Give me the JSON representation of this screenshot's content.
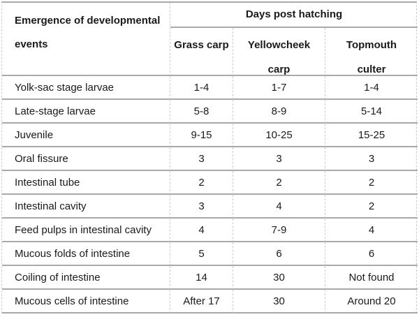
{
  "table": {
    "corner_header": {
      "line1": "Emergence of developmental",
      "line2": "events"
    },
    "group_header": "Days post hatching",
    "species_columns": [
      {
        "line1": "Grass carp",
        "line2": ""
      },
      {
        "line1": "Yellowcheek",
        "line2": "carp"
      },
      {
        "line1": "Topmouth",
        "line2": "culter"
      }
    ],
    "rows": [
      {
        "label": "Yolk-sac stage larvae",
        "values": [
          "1-4",
          "1-7",
          "1-4"
        ]
      },
      {
        "label": "Late-stage larvae",
        "values": [
          "5-8",
          "8-9",
          "5-14"
        ]
      },
      {
        "label": "Juvenile",
        "values": [
          "9-15",
          "10-25",
          "15-25"
        ]
      },
      {
        "label": "Oral fissure",
        "values": [
          "3",
          "3",
          "3"
        ]
      },
      {
        "label": "Intestinal tube",
        "values": [
          "2",
          "2",
          "2"
        ]
      },
      {
        "label": "Intestinal cavity",
        "values": [
          "3",
          "4",
          "2"
        ]
      },
      {
        "label": "Feed pulps in intestinal cavity",
        "values": [
          "4",
          "7-9",
          "4"
        ]
      },
      {
        "label": "Mucous folds of intestine",
        "values": [
          "5",
          "6",
          "6"
        ]
      },
      {
        "label": "Coiling of intestine",
        "values": [
          "14",
          "30",
          "Not found"
        ]
      },
      {
        "label": "Mucous cells of intestine",
        "values": [
          "After 17",
          "30",
          "Around 20"
        ]
      }
    ],
    "colors": {
      "text": "#1a1a1a",
      "horizontal_border": "#a9a9a9",
      "vertical_border": "#cdcdcd",
      "background": "#ffffff"
    }
  }
}
